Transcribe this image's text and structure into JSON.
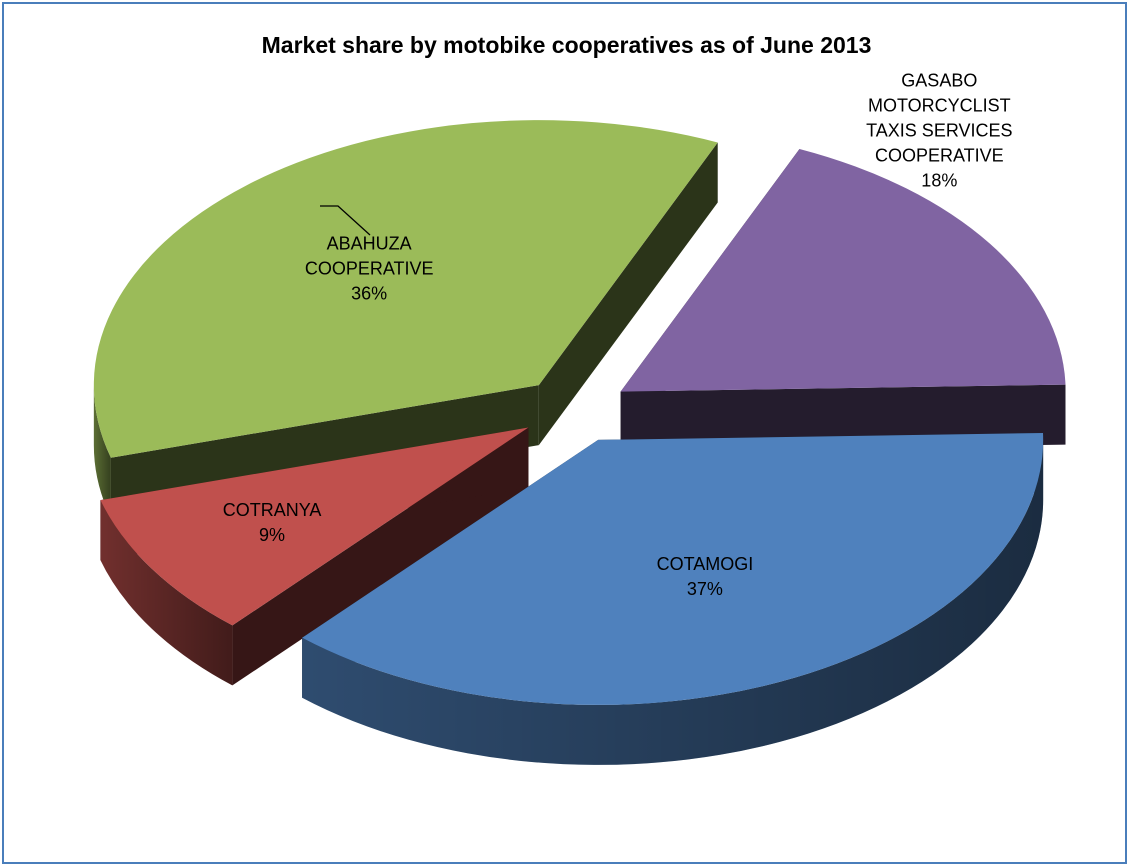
{
  "chart_data": {
    "type": "pie",
    "title": "Market share by motobike cooperatives as of June 2013",
    "slices": [
      {
        "label": [
          "COTAMOGI"
        ],
        "percent_label": "37%",
        "value": 37,
        "color": "#4f81bd"
      },
      {
        "label": [
          "COTRANYA"
        ],
        "percent_label": "9%",
        "value": 9,
        "color": "#c0504d"
      },
      {
        "label": [
          "ABAHUZA",
          "COOPERATIVE"
        ],
        "percent_label": "36%",
        "value": 36,
        "color": "#9bbb59"
      },
      {
        "label": [
          "GASABO",
          "MOTORCYCLIST",
          "TAXIS SERVICES",
          "COOPERATIVE"
        ],
        "percent_label": "18%",
        "value": 18,
        "color": "#8064a2"
      }
    ],
    "exploded": true,
    "three_d": true,
    "legend": "none"
  }
}
